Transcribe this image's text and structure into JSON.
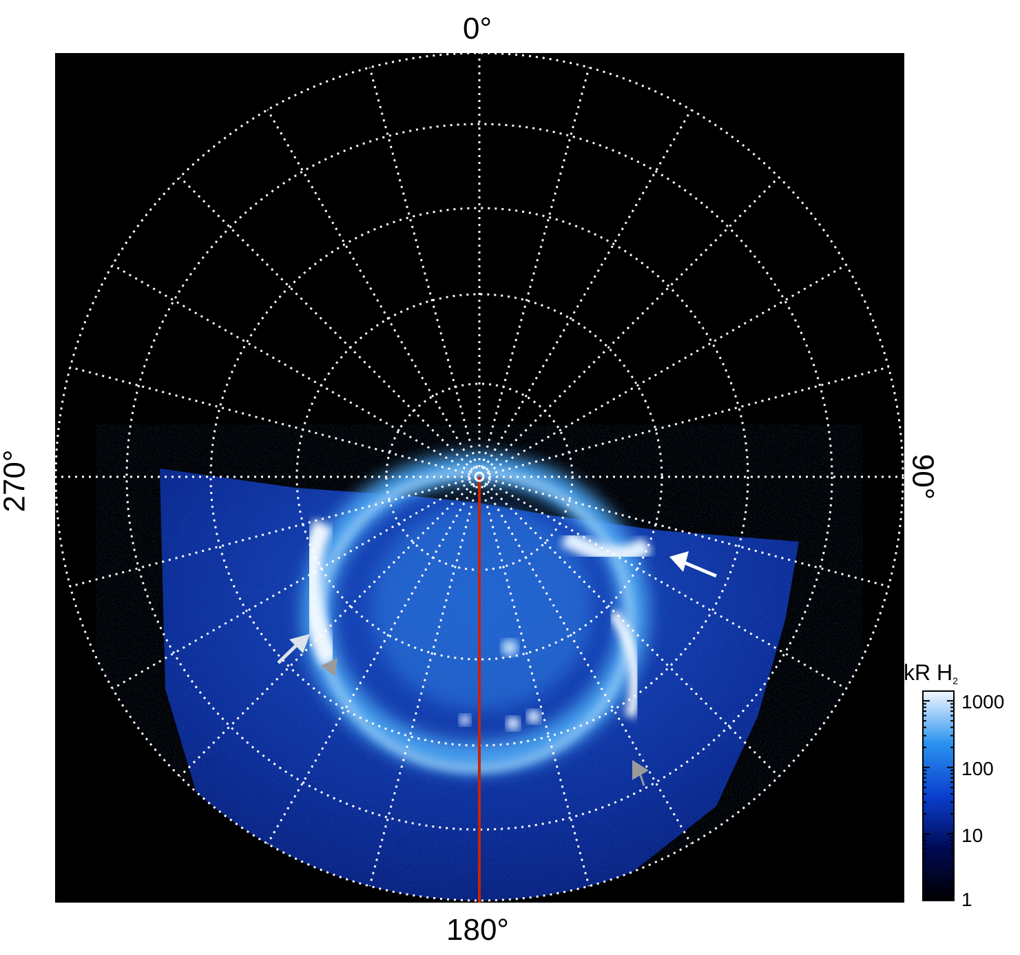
{
  "longitude_labels": {
    "top": "0°",
    "right": "90°",
    "bottom": "180°",
    "left": "270°"
  },
  "colorbar": {
    "title": "kR H",
    "title_subscript": "2",
    "ticks": [
      "1000",
      "100",
      "10",
      "1"
    ]
  },
  "colors": {
    "background": "#000000",
    "grid": "#ffffff",
    "meridian_line": "#cc2200",
    "aurora_bright": "#eaf4ff",
    "aurora_mid": "#3a8fe8",
    "aurora_dim": "#0a2a9a",
    "arrow_white": "#ffffff",
    "arrow_gray": "#a0a0a0"
  }
}
